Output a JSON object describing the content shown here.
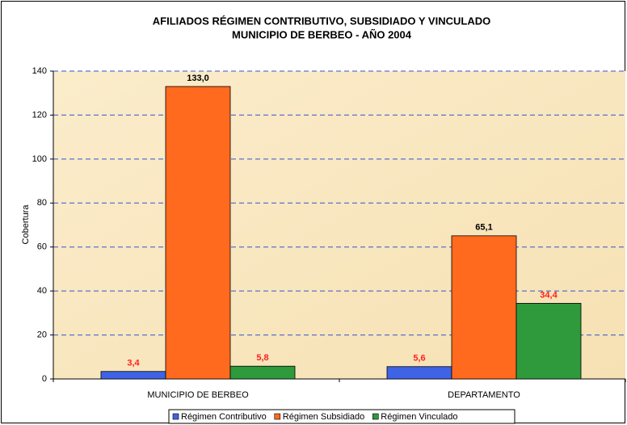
{
  "chart_data": {
    "type": "bar",
    "title": [
      "AFILIADOS RÉGIMEN CONTRIBUTIVO, SUBSIDIADO Y VINCULADO",
      "MUNICIPIO DE BERBEO - AÑO 2004"
    ],
    "y_label": "Cobertura",
    "categories": [
      "MUNICIPIO DE BERBEO",
      "DEPARTAMENTO"
    ],
    "series": [
      {
        "name": "Régimen Contributivo",
        "color": "#3f63e6",
        "label_color": "#ff2020",
        "values": [
          3.4,
          5.6
        ],
        "value_labels": [
          "3,4",
          "5,6"
        ]
      },
      {
        "name": "Régimen Subsidiado",
        "color": "#ff6a1e",
        "label_color": "#000000",
        "values": [
          133.0,
          65.1
        ],
        "value_labels": [
          "133,0",
          "65,1"
        ]
      },
      {
        "name": "Régimen Vinculado",
        "color": "#2e9a3c",
        "label_color": "#ff2020",
        "values": [
          5.8,
          34.4
        ],
        "value_labels": [
          "5,8",
          "34,4"
        ]
      }
    ],
    "ylim": [
      0,
      140
    ],
    "yticks": [
      0,
      20,
      40,
      60,
      80,
      100,
      120,
      140
    ],
    "grid": true,
    "legend": "bottom"
  }
}
